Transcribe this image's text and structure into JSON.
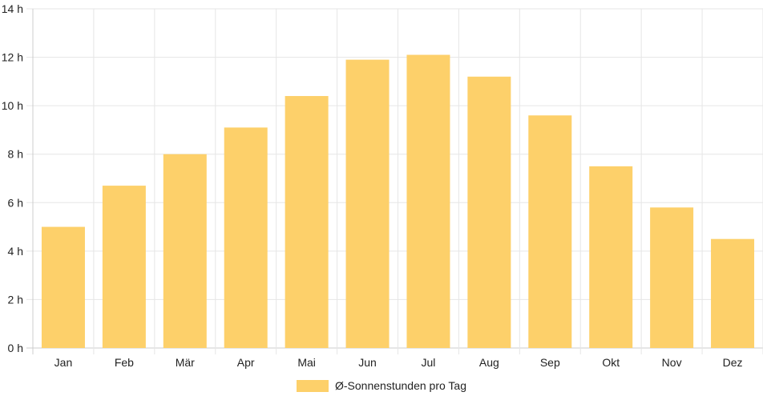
{
  "chart_data": {
    "type": "bar",
    "categories": [
      "Jan",
      "Feb",
      "Mär",
      "Apr",
      "Mai",
      "Jun",
      "Jul",
      "Aug",
      "Sep",
      "Okt",
      "Nov",
      "Dez"
    ],
    "series": [
      {
        "name": "Ø-Sonnenstunden pro Tag",
        "values": [
          5.0,
          6.7,
          8.0,
          9.1,
          10.4,
          11.9,
          12.1,
          11.2,
          9.6,
          7.5,
          5.8,
          4.5
        ],
        "color": "#fdd06a"
      }
    ],
    "y_ticks": [
      "0 h",
      "2 h",
      "4 h",
      "6 h",
      "8 h",
      "10 h",
      "12 h",
      "14 h"
    ],
    "ylim": [
      0,
      14
    ],
    "grid": true,
    "legend_position": "bottom",
    "colors": {
      "grid": "#e6e6e6",
      "axis": "#cccccc",
      "text": "#222222"
    }
  }
}
